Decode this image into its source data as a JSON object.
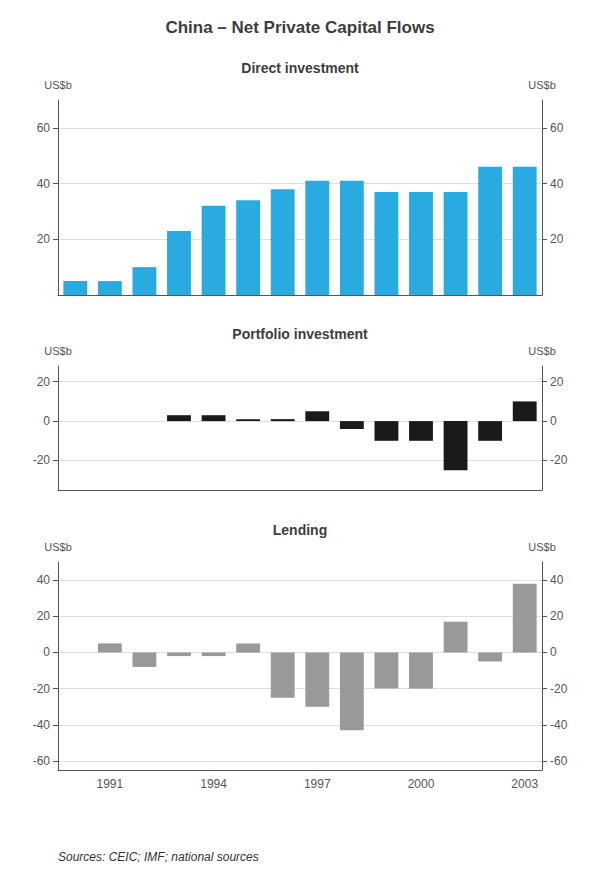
{
  "title": "China – Net Private Capital Flows",
  "annotations": [
    "Sources: CEIC; IMF; national sources"
  ],
  "chart_data": [
    {
      "type": "bar",
      "title": "Direct investment",
      "categories": [
        null,
        "1991",
        null,
        null,
        "1994",
        null,
        null,
        "1997",
        null,
        null,
        "2000",
        null,
        null,
        "2003"
      ],
      "values": [
        5,
        5,
        10,
        23,
        32,
        34,
        38,
        41,
        41,
        37,
        37,
        37,
        46,
        46
      ],
      "color": "#29ABE2",
      "ylabel": "US$b",
      "y2label": "US$b",
      "ylim": [
        0,
        70
      ],
      "yticks": [
        20,
        40,
        60
      ],
      "y2lim": [
        0,
        70
      ],
      "y2ticks": [
        20,
        40,
        60
      ],
      "grid": true,
      "tick_labels": "y"
    },
    {
      "type": "bar",
      "title": "Portfolio investment",
      "categories": [
        null,
        "1991",
        null,
        null,
        "1994",
        null,
        null,
        "1997",
        null,
        null,
        "2000",
        null,
        null,
        "2003"
      ],
      "values": [
        0,
        0,
        0,
        3,
        3,
        1,
        1,
        5,
        -4,
        -10,
        -10,
        -25,
        -10,
        10
      ],
      "color": "#1a1a1a",
      "ylabel": "US$b",
      "y2label": "US$b",
      "ylim": [
        -35,
        28
      ],
      "yticks": [
        -20,
        0,
        20
      ],
      "y2lim": [
        -35,
        28
      ],
      "y2ticks": [
        -20,
        0,
        20
      ],
      "grid": true,
      "tick_labels": "y"
    },
    {
      "type": "bar",
      "title": "Lending",
      "categories": [
        null,
        "1991",
        null,
        null,
        "1994",
        null,
        null,
        "1997",
        null,
        null,
        "2000",
        null,
        null,
        "2003"
      ],
      "values": [
        0,
        5,
        -8,
        -2,
        -2,
        5,
        -25,
        -30,
        -43,
        -20,
        -20,
        17,
        -5,
        38
      ],
      "color": "#999999",
      "ylabel": "US$b",
      "y2label": "US$b",
      "ylim": [
        -65,
        50
      ],
      "yticks": [
        -60,
        -40,
        -20,
        0,
        20,
        40
      ],
      "y2lim": [
        -65,
        50
      ],
      "y2ticks": [
        -60,
        -40,
        -20,
        0,
        20,
        40
      ],
      "grid": true
    }
  ]
}
